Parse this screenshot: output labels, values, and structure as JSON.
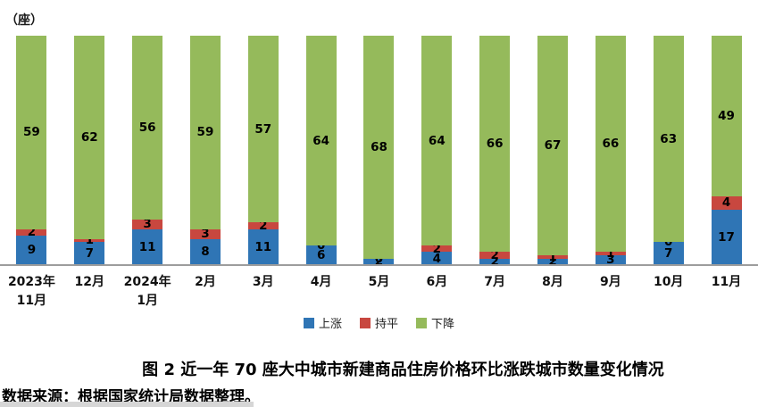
{
  "unit_label": "（座）",
  "title": "图 2 近一年 70 座大中城市新建商品住房价格环比涨跌城市数量变化情况",
  "source": "数据来源：根据国家统计局数据整理。",
  "legend": [
    {
      "label": "上涨",
      "color": "#2f75b5"
    },
    {
      "label": "持平",
      "color": "#c8473f"
    },
    {
      "label": "下降",
      "color": "#95ba5b"
    }
  ],
  "chart_data": {
    "type": "bar",
    "stacked": true,
    "categories": [
      "2023年\n11月",
      "12月",
      "2024年\n1月",
      "2月",
      "3月",
      "4月",
      "5月",
      "6月",
      "7月",
      "8月",
      "9月",
      "10月",
      "11月"
    ],
    "series": [
      {
        "name": "上涨",
        "color": "#2f75b5",
        "values": [
          9,
          7,
          11,
          8,
          11,
          6,
          2,
          4,
          2,
          2,
          3,
          7,
          17
        ]
      },
      {
        "name": "持平",
        "color": "#c8473f",
        "values": [
          2,
          1,
          3,
          3,
          2,
          0,
          0,
          2,
          2,
          1,
          1,
          0,
          4
        ]
      },
      {
        "name": "下降",
        "color": "#95ba5b",
        "values": [
          59,
          62,
          56,
          59,
          57,
          64,
          68,
          64,
          66,
          67,
          66,
          63,
          49
        ]
      }
    ],
    "title": "图 2 近一年 70 座大中城市新建商品住房价格环比涨跌城市数量变化情况",
    "xlabel": "",
    "ylabel": "（座）",
    "ylim": [
      0,
      70
    ],
    "grid": false,
    "data_labels": true,
    "legend_position": "bottom"
  }
}
